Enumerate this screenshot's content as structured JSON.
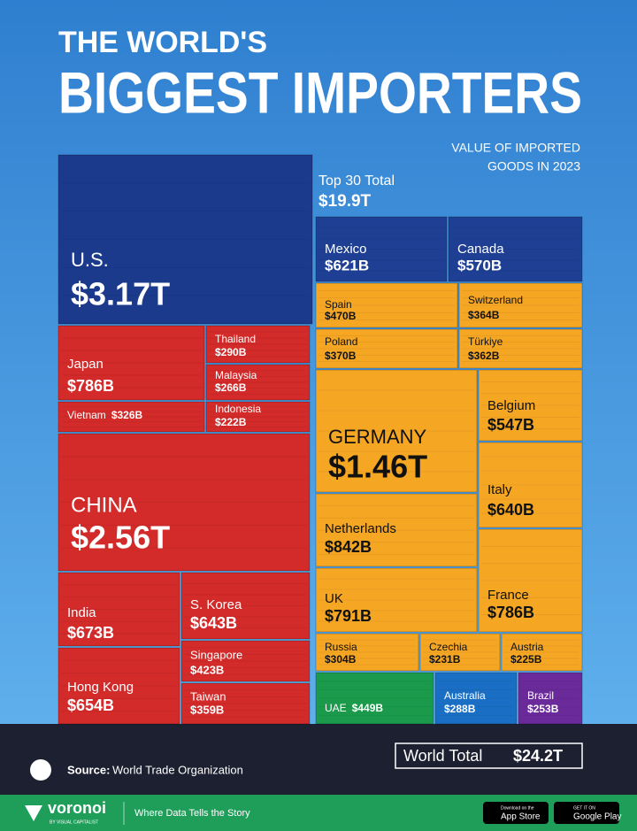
{
  "chart_data": {
    "type": "treemap",
    "title": [
      "THE WORLD'S",
      "BIGGEST IMPORTERS"
    ],
    "subtitle": [
      "VALUE OF IMPORTED",
      "GOODS IN 2023"
    ],
    "annotations": [
      {
        "label": "Top 30 Total",
        "value": "$19.9T"
      },
      {
        "label": "World Total",
        "value": "$24.2T"
      }
    ],
    "categories": [
      "U.S.",
      "Japan",
      "Thailand",
      "Malaysia",
      "Vietnam",
      "Indonesia",
      "CHINA",
      "India",
      "S. Korea",
      "Singapore",
      "Hong Kong",
      "Taiwan",
      "Mexico",
      "Canada",
      "Spain",
      "Switzerland",
      "Poland",
      "Türkiye",
      "GERMANY",
      "Belgium",
      "Italy",
      "Netherlands",
      "UK",
      "France",
      "Russia",
      "Czechia",
      "Austria",
      "UAE",
      "Australia",
      "Brazil"
    ],
    "values": [
      3170,
      786,
      290,
      266,
      326,
      222,
      2560,
      673,
      643,
      423,
      654,
      359,
      621,
      570,
      470,
      364,
      370,
      362,
      1460,
      547,
      640,
      842,
      791,
      786,
      304,
      231,
      225,
      449,
      288,
      253
    ],
    "value_labels": [
      "$3.17T",
      "$786B",
      "$290B",
      "$266B",
      "$326B",
      "$222B",
      "$2.56T",
      "$673B",
      "$643B",
      "$423B",
      "$654B",
      "$359B",
      "$621B",
      "$570B",
      "$470B",
      "$364B",
      "$370B",
      "$362B",
      "$1.46T",
      "$547B",
      "$640B",
      "$842B",
      "$791B",
      "$786B",
      "$304B",
      "$231B",
      "$225B",
      "$449B",
      "$288B",
      "$253B"
    ],
    "colors": [
      "#1b3a8c",
      "#d32a2a",
      "#d32a2a",
      "#d32a2a",
      "#d32a2a",
      "#d32a2a",
      "#d32a2a",
      "#d32a2a",
      "#d32a2a",
      "#d32a2a",
      "#d32a2a",
      "#d32a2a",
      "#1e3f94",
      "#1e3f94",
      "#f5a623",
      "#f5a623",
      "#f5a623",
      "#f5a623",
      "#f5a623",
      "#f5a623",
      "#f5a623",
      "#f5a623",
      "#f5a623",
      "#f5a623",
      "#f5a623",
      "#f5a623",
      "#f5a623",
      "#1a9a4a",
      "#1a6fc4",
      "#6a2a9a"
    ]
  },
  "footer": {
    "source_label": "Source:",
    "source": "World Trade Organization",
    "brand": "voronoi",
    "brand_sub": "BY VISUAL CAPITALIST",
    "tagline": "Where Data Tells the Story",
    "app_store": [
      "Download on the",
      "App Store"
    ],
    "google_play": [
      "GET IT ON",
      "Google Play"
    ]
  }
}
